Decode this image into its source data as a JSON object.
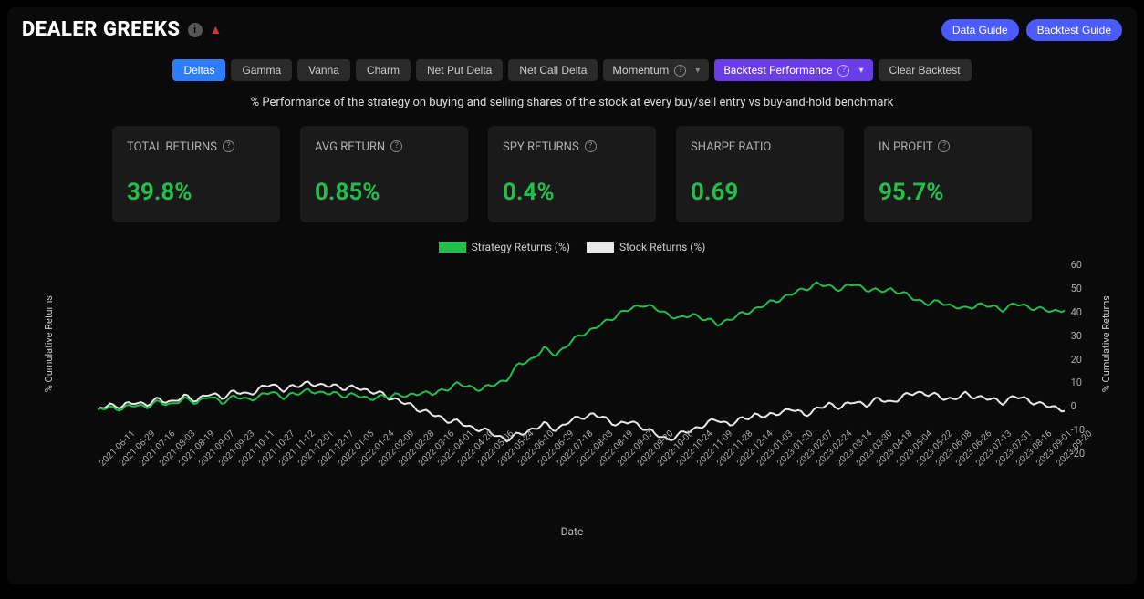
{
  "page": {
    "title": "DEALER GREEKS",
    "buttons": {
      "data_guide": "Data Guide",
      "backtest_guide": "Backtest Guide"
    },
    "subtitle": "% Performance of the strategy on buying and selling shares of the stock at every buy/sell entry vs buy-and-hold benchmark"
  },
  "tabs": {
    "items": [
      "Deltas",
      "Gamma",
      "Vanna",
      "Charm",
      "Net Put Delta",
      "Net Call Delta"
    ],
    "active_index": 0,
    "momentum": "Momentum",
    "backtest_perf": "Backtest Performance",
    "clear_backtest": "Clear Backtest"
  },
  "stats": [
    {
      "label": "TOTAL RETURNS",
      "value": "39.8%",
      "help": true
    },
    {
      "label": "AVG RETURN",
      "value": "0.85%",
      "help": true
    },
    {
      "label": "SPY RETURNS",
      "value": "0.4%",
      "help": true
    },
    {
      "label": "SHARPE RATIO",
      "value": "0.69",
      "help": false
    },
    {
      "label": "IN PROFIT",
      "value": "95.7%",
      "help": true
    }
  ],
  "chart": {
    "type": "line",
    "legend": [
      {
        "label": "Strategy Returns (%)",
        "color": "#1fbf4a"
      },
      {
        "label": "Stock Returns (%)",
        "color": "#e8e8e8"
      }
    ],
    "y_axis_label": "% Cumulative Returns",
    "x_axis_label": "Date",
    "ylim": [
      -20,
      60
    ],
    "ytick_step": 10,
    "x_labels": [
      "2021-06-11",
      "2021-06-29",
      "2021-07-16",
      "2021-08-03",
      "2021-08-19",
      "2021-09-07",
      "2021-09-23",
      "2021-10-11",
      "2021-10-27",
      "2021-11-12",
      "2021-12-01",
      "2021-12-17",
      "2022-01-05",
      "2022-01-24",
      "2022-02-09",
      "2022-02-28",
      "2022-03-16",
      "2022-04-01",
      "2022-04-20",
      "2022-05-06",
      "2022-05-24",
      "2022-06-10",
      "2022-06-29",
      "2022-07-18",
      "2022-08-03",
      "2022-08-19",
      "2022-09-07",
      "2022-09-20",
      "2022-10-06",
      "2022-10-24",
      "2022-11-09",
      "2022-11-28",
      "2022-12-14",
      "2023-01-03",
      "2023-01-20",
      "2023-02-07",
      "2023-02-24",
      "2023-03-14",
      "2023-03-30",
      "2023-04-18",
      "2023-05-04",
      "2023-05-22",
      "2023-06-08",
      "2023-06-26",
      "2023-07-13",
      "2023-07-31",
      "2023-08-16",
      "2023-09-01",
      "2023-09-20"
    ],
    "series": {
      "strategy": {
        "color": "#1fbf4a",
        "width": 2,
        "values": [
          0,
          1,
          0,
          2,
          1,
          3,
          2,
          4,
          3,
          5,
          3,
          5,
          4,
          5,
          7,
          5,
          6,
          8,
          6,
          7,
          5,
          6,
          4,
          5,
          6,
          5,
          7,
          6,
          8,
          10,
          9,
          8,
          10,
          12,
          18,
          20,
          24,
          22,
          26,
          30,
          32,
          35,
          38,
          40,
          42,
          40,
          38,
          36,
          38,
          36,
          34,
          36,
          38,
          40,
          42,
          44,
          46,
          48,
          50,
          49,
          48,
          50,
          48,
          47,
          48,
          46,
          44,
          42,
          43,
          41,
          40,
          42,
          41,
          40,
          42,
          41,
          40,
          39,
          40
        ]
      },
      "stock": {
        "color": "#e8e8e8",
        "width": 2,
        "values": [
          0,
          2,
          1,
          3,
          2,
          4,
          3,
          5,
          4,
          6,
          5,
          7,
          6,
          8,
          10,
          8,
          9,
          11,
          9,
          10,
          8,
          9,
          7,
          6,
          4,
          2,
          0,
          -2,
          -4,
          -5,
          -7,
          -8,
          -10,
          -12,
          -10,
          -8,
          -6,
          -8,
          -5,
          -3,
          -2,
          -4,
          -6,
          -5,
          -7,
          -10,
          -12,
          -10,
          -8,
          -6,
          -4,
          -6,
          -4,
          -2,
          -3,
          -1,
          0,
          -2,
          0,
          2,
          1,
          3,
          2,
          4,
          3,
          5,
          7,
          6,
          5,
          4,
          6,
          5,
          4,
          3,
          5,
          4,
          2,
          1,
          0
        ]
      }
    },
    "colors": {
      "bg": "#0a0a0a",
      "text": "#cccccc"
    }
  }
}
